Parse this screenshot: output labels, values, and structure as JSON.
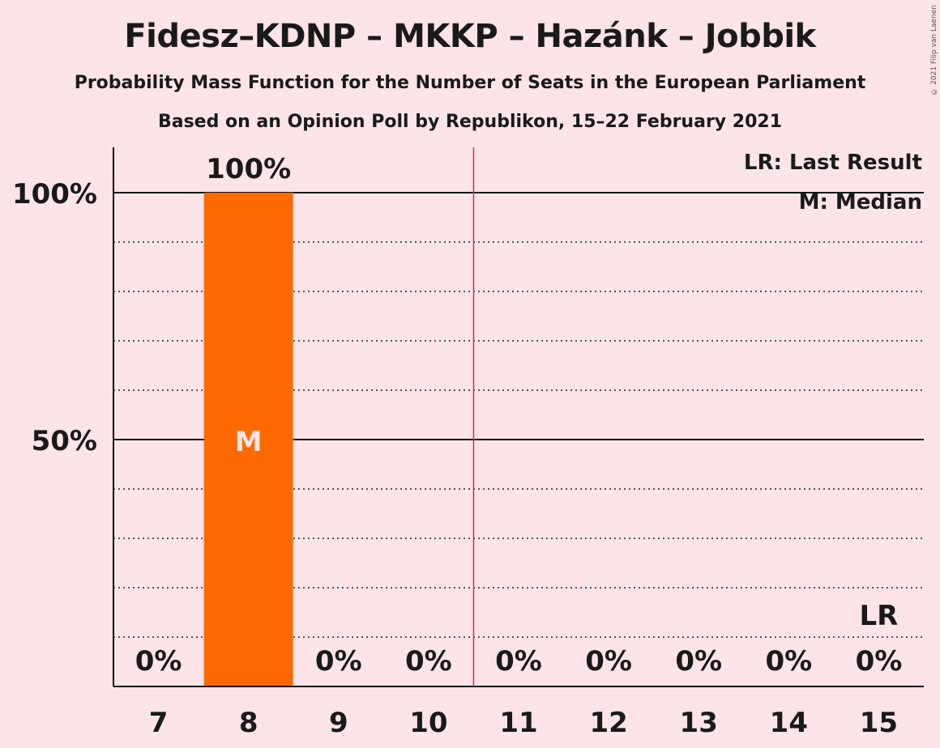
{
  "title": "Fidesz–KDNP – MKKP – Hazánk – Jobbik",
  "subtitle": "Probability Mass Function for the Number of Seats in the European Parliament",
  "subtitle2": "Based on an Opinion Poll by Republikon, 15–22 February 2021",
  "copyright": "© 2021 Filip van Laenen",
  "legend": {
    "last_result": "LR: Last Result",
    "median": "M: Median"
  },
  "colors": {
    "background": "#fce4e8",
    "bar": "#ff6a00",
    "last_result_line": "#e0245e",
    "text": "#1a1a1a"
  },
  "chart_data": {
    "type": "bar",
    "categories": [
      "7",
      "8",
      "9",
      "10",
      "11",
      "12",
      "13",
      "14",
      "15"
    ],
    "values": [
      0,
      100,
      0,
      0,
      0,
      0,
      0,
      0,
      0
    ],
    "value_labels": [
      "0%",
      "100%",
      "0%",
      "0%",
      "0%",
      "0%",
      "0%",
      "0%",
      "0%"
    ],
    "y_ticks": [
      {
        "value": 100,
        "label": "100%"
      },
      {
        "value": 50,
        "label": "50%"
      }
    ],
    "ylim": [
      0,
      110
    ],
    "minor_gridlines_every": 10,
    "median_category": "8",
    "median_marker": "M",
    "last_result_category": "15",
    "last_result_marker": "LR",
    "threshold_between": [
      "10",
      "11"
    ]
  }
}
